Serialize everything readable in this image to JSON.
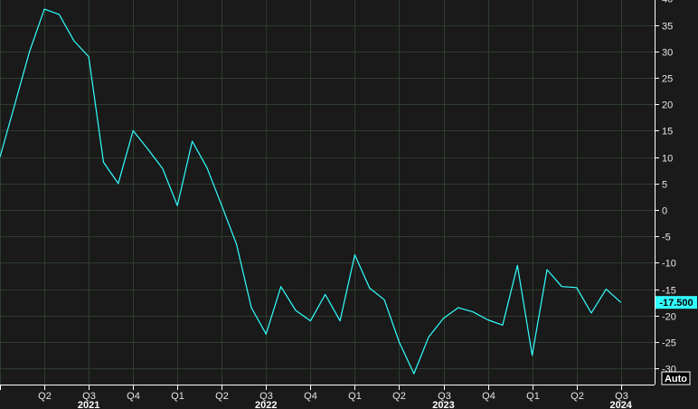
{
  "chart_data": {
    "type": "line",
    "title": "",
    "xlabel": "",
    "ylabel": "",
    "ylim": [
      -33,
      40
    ],
    "yticks": [
      40,
      35,
      30,
      25,
      20,
      15,
      10,
      5,
      0,
      -5,
      -10,
      -15,
      -20,
      -25,
      -30
    ],
    "quarter_ticks": [
      {
        "label": "",
        "x": "2021-01"
      },
      {
        "label": "Q2",
        "x": "2021-04"
      },
      {
        "label": "Q3",
        "x": "2021-07"
      },
      {
        "label": "Q4",
        "x": "2021-10"
      },
      {
        "label": "Q1",
        "x": "2022-01"
      },
      {
        "label": "Q2",
        "x": "2022-04"
      },
      {
        "label": "Q3",
        "x": "2022-07"
      },
      {
        "label": "Q4",
        "x": "2022-10"
      },
      {
        "label": "Q1",
        "x": "2023-01"
      },
      {
        "label": "Q2",
        "x": "2023-04"
      },
      {
        "label": "Q3",
        "x": "2023-07"
      },
      {
        "label": "Q4",
        "x": "2023-10"
      },
      {
        "label": "Q1",
        "x": "2024-01"
      },
      {
        "label": "Q2",
        "x": "2024-04"
      },
      {
        "label": "Q3",
        "x": "2024-07"
      }
    ],
    "year_labels": [
      {
        "label": "2021",
        "x": "2021-07"
      },
      {
        "label": "2022",
        "x": "2022-07"
      },
      {
        "label": "2023",
        "x": "2023-07"
      },
      {
        "label": "2024",
        "x": "2024-07"
      }
    ],
    "last_value_label": "-17.500",
    "scale_mode_label": "Auto",
    "colors": {
      "line": "#33ffff",
      "background": "#1a1a1a",
      "grid": "#2e3d2e",
      "last_value_bg": "#33ffff"
    },
    "series": [
      {
        "x": [
          "2021-01",
          "2021-02",
          "2021-03",
          "2021-04",
          "2021-05",
          "2021-06",
          "2021-07",
          "2021-08",
          "2021-09",
          "2021-10",
          "2021-11",
          "2021-12",
          "2022-01",
          "2022-02",
          "2022-03",
          "2022-04",
          "2022-05",
          "2022-06",
          "2022-07",
          "2022-08",
          "2022-09",
          "2022-10",
          "2022-11",
          "2022-12",
          "2023-01",
          "2023-02",
          "2023-03",
          "2023-04",
          "2023-05",
          "2023-06",
          "2023-07",
          "2023-08",
          "2023-09",
          "2023-10",
          "2023-11",
          "2023-12",
          "2024-01",
          "2024-02",
          "2024-03",
          "2024-04",
          "2024-05",
          "2024-06",
          "2024-07"
        ],
        "values": [
          10,
          20,
          30,
          38,
          37,
          32,
          29,
          9,
          5,
          15,
          11.5,
          7.8,
          0.8,
          13,
          8,
          0.8,
          -6.5,
          -18.5,
          -23.5,
          -14.5,
          -19,
          -21,
          -16,
          -21,
          -8.5,
          -14.8,
          -17,
          -25,
          -31,
          -24,
          -20.5,
          -18.5,
          -19.3,
          -20.8,
          -21.8,
          -10.5,
          -27.5,
          -11.3,
          -14.5,
          -14.7,
          -19.5,
          -15,
          -17.5
        ]
      }
    ]
  }
}
